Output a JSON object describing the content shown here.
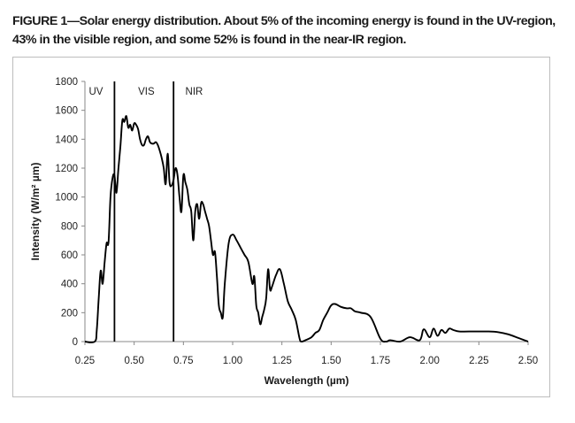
{
  "caption": "FIGURE 1—Solar energy distribution. About 5% of the incoming energy is found in the UV-region, 43% in the visible region, and some 52% is found in the near-IR region.",
  "chart_data": {
    "type": "line",
    "title": "",
    "xlabel": "Wavelength (µm)",
    "ylabel": "Intensity (W/m² µm)",
    "xlim": [
      0.25,
      2.5
    ],
    "ylim": [
      0,
      1800
    ],
    "xticks": [
      "0.25",
      "0.50",
      "0.75",
      "1.00",
      "1.25",
      "1.50",
      "1.75",
      "2.00",
      "2.25",
      "2.50"
    ],
    "yticks": [
      "0",
      "200",
      "400",
      "600",
      "800",
      "1000",
      "1200",
      "1400",
      "1600",
      "1800"
    ],
    "grid": false,
    "legend": "none",
    "line_color": "#000000",
    "regions": [
      {
        "label": "UV",
        "x": 0.27
      },
      {
        "label": "VIS",
        "x": 0.52
      },
      {
        "label": "NIR",
        "x": 0.76
      }
    ],
    "boundaries": [
      0.4,
      0.7
    ],
    "series": [
      {
        "x": [
          0.25,
          0.3,
          0.31,
          0.32,
          0.33,
          0.34,
          0.35,
          0.36,
          0.37,
          0.38,
          0.39,
          0.4,
          0.41,
          0.42,
          0.43,
          0.44,
          0.45,
          0.46,
          0.47,
          0.48,
          0.49,
          0.5,
          0.51,
          0.52,
          0.53,
          0.54,
          0.55,
          0.56,
          0.57,
          0.58,
          0.59,
          0.6,
          0.61,
          0.62,
          0.63,
          0.64,
          0.65,
          0.66,
          0.67,
          0.68,
          0.69,
          0.7,
          0.71,
          0.72,
          0.73,
          0.74,
          0.75,
          0.76,
          0.77,
          0.78,
          0.79,
          0.8,
          0.81,
          0.82,
          0.83,
          0.84,
          0.85,
          0.86,
          0.87,
          0.88,
          0.89,
          0.9,
          0.91,
          0.92,
          0.93,
          0.94,
          0.95,
          0.96,
          0.98,
          1.0,
          1.02,
          1.04,
          1.06,
          1.08,
          1.1,
          1.11,
          1.12,
          1.13,
          1.14,
          1.15,
          1.16,
          1.17,
          1.18,
          1.19,
          1.2,
          1.22,
          1.24,
          1.26,
          1.28,
          1.3,
          1.32,
          1.34,
          1.35,
          1.37,
          1.4,
          1.42,
          1.44,
          1.46,
          1.48,
          1.5,
          1.52,
          1.55,
          1.58,
          1.6,
          1.62,
          1.65,
          1.7,
          1.75,
          1.78,
          1.8,
          1.85,
          1.9,
          1.95,
          1.97,
          2.0,
          2.02,
          2.04,
          2.06,
          2.08,
          2.1,
          2.12,
          2.15,
          2.2,
          2.3,
          2.35,
          2.4,
          2.45,
          2.5
        ],
        "values": [
          0,
          0,
          80,
          300,
          490,
          400,
          550,
          680,
          690,
          1000,
          1130,
          1150,
          1030,
          1200,
          1350,
          1530,
          1520,
          1560,
          1480,
          1500,
          1460,
          1510,
          1500,
          1470,
          1400,
          1360,
          1360,
          1400,
          1420,
          1380,
          1370,
          1370,
          1380,
          1360,
          1320,
          1270,
          1200,
          1090,
          1300,
          1100,
          1080,
          1120,
          1200,
          1150,
          1000,
          900,
          1150,
          1100,
          1050,
          950,
          900,
          700,
          900,
          950,
          850,
          960,
          950,
          900,
          850,
          800,
          700,
          600,
          620,
          450,
          250,
          200,
          170,
          400,
          680,
          740,
          700,
          650,
          600,
          550,
          400,
          450,
          250,
          200,
          120,
          170,
          220,
          300,
          500,
          360,
          380,
          460,
          500,
          400,
          280,
          220,
          150,
          20,
          0,
          10,
          30,
          60,
          80,
          150,
          200,
          250,
          260,
          240,
          230,
          230,
          210,
          200,
          170,
          20,
          0,
          10,
          0,
          30,
          10,
          85,
          30,
          90,
          40,
          80,
          60,
          90,
          80,
          70,
          70,
          70,
          65,
          50,
          25,
          0
        ]
      }
    ]
  }
}
